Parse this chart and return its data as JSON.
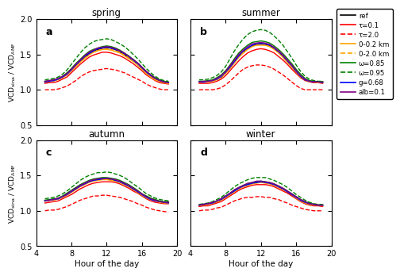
{
  "title_a": "spring",
  "title_b": "summer",
  "title_c": "autumn",
  "title_d": "winter",
  "label_a": "a",
  "label_b": "b",
  "label_c": "c",
  "label_d": "d",
  "xlabel": "Hour of the day",
  "ylabel_top": "VCD$_{sina}$ / VCD$_{AMF}$",
  "ylabel_bot": "VCD$_{sina}$ / VCD$_{AMF}$",
  "xlim": [
    4,
    20
  ],
  "ylim": [
    0.5,
    2.0
  ],
  "xticks": [
    4,
    8,
    12,
    16,
    20
  ],
  "yticks": [
    0.5,
    1.0,
    1.5,
    2.0
  ],
  "hours": [
    5.0,
    5.5,
    6.0,
    6.5,
    7.0,
    7.5,
    8.0,
    8.5,
    9.0,
    9.5,
    10.0,
    10.5,
    11.0,
    11.5,
    12.0,
    12.5,
    13.0,
    13.5,
    14.0,
    14.5,
    15.0,
    15.5,
    16.0,
    16.5,
    17.0,
    17.5,
    18.0,
    18.5,
    19.0
  ],
  "legend_labels": [
    "ref",
    "τ=0.1",
    "τ=2.0",
    "0-0.2 km",
    "0-2.0 km",
    "ω=0.85",
    "ω=0.95",
    "g=0.68",
    "alb=0.1"
  ],
  "legend_colors": [
    "black",
    "red",
    "red",
    "orange",
    "orange",
    "green",
    "green",
    "blue",
    "purple"
  ],
  "legend_styles": [
    "solid",
    "solid",
    "dashed",
    "solid",
    "dashed",
    "solid",
    "dashed",
    "solid",
    "solid"
  ],
  "spring": {
    "ref": [
      1.11,
      1.12,
      1.13,
      1.15,
      1.18,
      1.22,
      1.28,
      1.34,
      1.4,
      1.46,
      1.51,
      1.55,
      1.57,
      1.59,
      1.6,
      1.59,
      1.57,
      1.54,
      1.5,
      1.46,
      1.42,
      1.37,
      1.31,
      1.25,
      1.2,
      1.16,
      1.13,
      1.11,
      1.1
    ],
    "tau01": [
      1.09,
      1.1,
      1.1,
      1.12,
      1.15,
      1.18,
      1.24,
      1.3,
      1.36,
      1.41,
      1.46,
      1.49,
      1.51,
      1.53,
      1.53,
      1.52,
      1.5,
      1.48,
      1.45,
      1.41,
      1.37,
      1.32,
      1.27,
      1.21,
      1.17,
      1.13,
      1.1,
      1.09,
      1.08
    ],
    "tau20": [
      1.0,
      1.0,
      1.0,
      1.01,
      1.03,
      1.05,
      1.09,
      1.13,
      1.18,
      1.22,
      1.25,
      1.27,
      1.28,
      1.29,
      1.3,
      1.29,
      1.28,
      1.26,
      1.24,
      1.21,
      1.18,
      1.15,
      1.12,
      1.08,
      1.05,
      1.03,
      1.01,
      1.0,
      1.0
    ],
    "km02": [
      1.11,
      1.12,
      1.13,
      1.14,
      1.17,
      1.21,
      1.27,
      1.33,
      1.39,
      1.44,
      1.49,
      1.53,
      1.55,
      1.57,
      1.57,
      1.56,
      1.54,
      1.52,
      1.48,
      1.44,
      1.4,
      1.35,
      1.29,
      1.23,
      1.18,
      1.14,
      1.12,
      1.1,
      1.09
    ],
    "km20": [
      1.11,
      1.12,
      1.13,
      1.15,
      1.18,
      1.21,
      1.27,
      1.33,
      1.39,
      1.45,
      1.5,
      1.53,
      1.56,
      1.57,
      1.58,
      1.57,
      1.55,
      1.53,
      1.49,
      1.45,
      1.41,
      1.36,
      1.3,
      1.24,
      1.19,
      1.15,
      1.12,
      1.1,
      1.09
    ],
    "w085": [
      1.12,
      1.13,
      1.14,
      1.16,
      1.19,
      1.24,
      1.3,
      1.37,
      1.43,
      1.49,
      1.54,
      1.57,
      1.59,
      1.61,
      1.62,
      1.61,
      1.59,
      1.56,
      1.52,
      1.48,
      1.43,
      1.38,
      1.32,
      1.26,
      1.21,
      1.17,
      1.14,
      1.12,
      1.11
    ],
    "w095": [
      1.14,
      1.15,
      1.16,
      1.18,
      1.22,
      1.28,
      1.36,
      1.44,
      1.52,
      1.59,
      1.64,
      1.68,
      1.7,
      1.71,
      1.72,
      1.71,
      1.68,
      1.65,
      1.61,
      1.56,
      1.5,
      1.44,
      1.37,
      1.3,
      1.24,
      1.19,
      1.15,
      1.13,
      1.12
    ],
    "g068": [
      1.11,
      1.12,
      1.13,
      1.15,
      1.18,
      1.22,
      1.28,
      1.35,
      1.41,
      1.47,
      1.51,
      1.55,
      1.58,
      1.59,
      1.6,
      1.59,
      1.57,
      1.55,
      1.51,
      1.47,
      1.42,
      1.37,
      1.31,
      1.25,
      1.2,
      1.16,
      1.13,
      1.11,
      1.1
    ],
    "alb01": [
      1.12,
      1.13,
      1.14,
      1.16,
      1.19,
      1.23,
      1.29,
      1.36,
      1.42,
      1.48,
      1.53,
      1.56,
      1.59,
      1.6,
      1.61,
      1.6,
      1.58,
      1.55,
      1.52,
      1.47,
      1.43,
      1.38,
      1.32,
      1.26,
      1.21,
      1.16,
      1.13,
      1.11,
      1.1
    ]
  },
  "summer": {
    "ref": [
      1.11,
      1.11,
      1.12,
      1.13,
      1.15,
      1.18,
      1.24,
      1.31,
      1.39,
      1.47,
      1.53,
      1.58,
      1.62,
      1.64,
      1.65,
      1.64,
      1.62,
      1.58,
      1.53,
      1.47,
      1.4,
      1.33,
      1.26,
      1.19,
      1.14,
      1.12,
      1.11,
      1.11,
      1.11
    ],
    "tau01": [
      1.09,
      1.09,
      1.09,
      1.1,
      1.12,
      1.15,
      1.2,
      1.27,
      1.34,
      1.41,
      1.47,
      1.52,
      1.55,
      1.57,
      1.58,
      1.57,
      1.55,
      1.52,
      1.47,
      1.42,
      1.36,
      1.29,
      1.23,
      1.17,
      1.13,
      1.11,
      1.1,
      1.1,
      1.09
    ],
    "tau20": [
      1.0,
      1.0,
      1.0,
      1.0,
      1.01,
      1.03,
      1.07,
      1.12,
      1.18,
      1.24,
      1.29,
      1.32,
      1.34,
      1.35,
      1.35,
      1.34,
      1.32,
      1.29,
      1.25,
      1.21,
      1.16,
      1.11,
      1.06,
      1.02,
      1.0,
      1.0,
      1.0,
      1.0,
      1.0
    ],
    "km02": [
      1.11,
      1.11,
      1.11,
      1.12,
      1.14,
      1.18,
      1.23,
      1.3,
      1.38,
      1.46,
      1.52,
      1.57,
      1.61,
      1.63,
      1.63,
      1.63,
      1.61,
      1.57,
      1.52,
      1.46,
      1.39,
      1.32,
      1.25,
      1.18,
      1.14,
      1.11,
      1.11,
      1.1,
      1.1
    ],
    "km20": [
      1.11,
      1.11,
      1.12,
      1.13,
      1.15,
      1.18,
      1.24,
      1.31,
      1.39,
      1.47,
      1.53,
      1.58,
      1.61,
      1.63,
      1.64,
      1.63,
      1.61,
      1.58,
      1.53,
      1.47,
      1.4,
      1.33,
      1.26,
      1.19,
      1.14,
      1.12,
      1.11,
      1.1,
      1.1
    ],
    "w085": [
      1.12,
      1.12,
      1.13,
      1.14,
      1.17,
      1.21,
      1.27,
      1.35,
      1.44,
      1.52,
      1.58,
      1.63,
      1.67,
      1.68,
      1.69,
      1.68,
      1.66,
      1.62,
      1.57,
      1.51,
      1.44,
      1.37,
      1.29,
      1.22,
      1.16,
      1.13,
      1.12,
      1.11,
      1.11
    ],
    "w095": [
      1.14,
      1.14,
      1.15,
      1.17,
      1.2,
      1.25,
      1.33,
      1.44,
      1.55,
      1.64,
      1.72,
      1.78,
      1.82,
      1.84,
      1.85,
      1.84,
      1.81,
      1.76,
      1.7,
      1.63,
      1.54,
      1.45,
      1.35,
      1.26,
      1.19,
      1.15,
      1.13,
      1.12,
      1.12
    ],
    "g068": [
      1.11,
      1.11,
      1.12,
      1.13,
      1.15,
      1.19,
      1.25,
      1.32,
      1.4,
      1.48,
      1.55,
      1.59,
      1.63,
      1.65,
      1.65,
      1.65,
      1.63,
      1.59,
      1.54,
      1.48,
      1.41,
      1.34,
      1.26,
      1.19,
      1.14,
      1.12,
      1.11,
      1.11,
      1.1
    ],
    "alb01": [
      1.11,
      1.12,
      1.12,
      1.13,
      1.16,
      1.2,
      1.26,
      1.34,
      1.42,
      1.5,
      1.56,
      1.61,
      1.65,
      1.66,
      1.67,
      1.66,
      1.64,
      1.6,
      1.55,
      1.49,
      1.42,
      1.35,
      1.27,
      1.2,
      1.15,
      1.12,
      1.11,
      1.11,
      1.1
    ]
  },
  "autumn": {
    "ref": [
      1.14,
      1.15,
      1.16,
      1.17,
      1.2,
      1.23,
      1.27,
      1.31,
      1.35,
      1.38,
      1.41,
      1.43,
      1.44,
      1.45,
      1.45,
      1.44,
      1.43,
      1.41,
      1.38,
      1.35,
      1.31,
      1.27,
      1.23,
      1.2,
      1.17,
      1.15,
      1.13,
      1.12,
      1.12
    ],
    "tau01": [
      1.11,
      1.12,
      1.13,
      1.14,
      1.17,
      1.2,
      1.23,
      1.27,
      1.31,
      1.34,
      1.37,
      1.39,
      1.4,
      1.41,
      1.41,
      1.41,
      1.4,
      1.38,
      1.35,
      1.32,
      1.28,
      1.25,
      1.21,
      1.17,
      1.14,
      1.12,
      1.11,
      1.1,
      1.1
    ],
    "tau20": [
      1.0,
      1.01,
      1.01,
      1.02,
      1.04,
      1.06,
      1.09,
      1.12,
      1.15,
      1.17,
      1.19,
      1.21,
      1.21,
      1.22,
      1.22,
      1.21,
      1.2,
      1.19,
      1.17,
      1.15,
      1.13,
      1.1,
      1.08,
      1.05,
      1.03,
      1.01,
      1.0,
      0.99,
      0.98
    ],
    "km02": [
      1.14,
      1.15,
      1.15,
      1.17,
      1.19,
      1.22,
      1.26,
      1.3,
      1.34,
      1.37,
      1.4,
      1.42,
      1.43,
      1.44,
      1.44,
      1.43,
      1.42,
      1.4,
      1.37,
      1.34,
      1.3,
      1.26,
      1.22,
      1.18,
      1.16,
      1.14,
      1.12,
      1.11,
      1.11
    ],
    "km20": [
      1.14,
      1.15,
      1.16,
      1.17,
      1.2,
      1.23,
      1.27,
      1.31,
      1.35,
      1.38,
      1.41,
      1.43,
      1.44,
      1.45,
      1.45,
      1.44,
      1.43,
      1.41,
      1.38,
      1.35,
      1.31,
      1.27,
      1.23,
      1.19,
      1.16,
      1.14,
      1.13,
      1.12,
      1.12
    ],
    "w085": [
      1.15,
      1.16,
      1.17,
      1.18,
      1.21,
      1.25,
      1.29,
      1.33,
      1.37,
      1.4,
      1.43,
      1.45,
      1.46,
      1.47,
      1.47,
      1.46,
      1.45,
      1.43,
      1.4,
      1.37,
      1.33,
      1.29,
      1.24,
      1.21,
      1.18,
      1.16,
      1.14,
      1.13,
      1.13
    ],
    "w095": [
      1.17,
      1.18,
      1.19,
      1.21,
      1.24,
      1.28,
      1.33,
      1.38,
      1.43,
      1.47,
      1.5,
      1.52,
      1.54,
      1.54,
      1.55,
      1.54,
      1.52,
      1.5,
      1.47,
      1.43,
      1.38,
      1.34,
      1.29,
      1.24,
      1.21,
      1.18,
      1.16,
      1.15,
      1.14
    ],
    "g068": [
      1.14,
      1.15,
      1.16,
      1.17,
      1.2,
      1.23,
      1.27,
      1.31,
      1.35,
      1.38,
      1.41,
      1.43,
      1.44,
      1.45,
      1.46,
      1.45,
      1.43,
      1.41,
      1.38,
      1.35,
      1.31,
      1.27,
      1.23,
      1.19,
      1.16,
      1.14,
      1.13,
      1.12,
      1.11
    ],
    "alb01": [
      1.14,
      1.15,
      1.16,
      1.18,
      1.2,
      1.24,
      1.28,
      1.32,
      1.36,
      1.39,
      1.42,
      1.44,
      1.45,
      1.46,
      1.46,
      1.45,
      1.44,
      1.42,
      1.39,
      1.36,
      1.32,
      1.28,
      1.24,
      1.2,
      1.17,
      1.15,
      1.13,
      1.12,
      1.12
    ]
  },
  "winter": {
    "ref": [
      1.08,
      1.09,
      1.1,
      1.11,
      1.13,
      1.16,
      1.2,
      1.24,
      1.28,
      1.32,
      1.35,
      1.37,
      1.39,
      1.4,
      1.41,
      1.4,
      1.39,
      1.37,
      1.34,
      1.31,
      1.27,
      1.23,
      1.19,
      1.15,
      1.12,
      1.1,
      1.09,
      1.08,
      1.08
    ],
    "tau01": [
      1.06,
      1.07,
      1.07,
      1.09,
      1.11,
      1.13,
      1.17,
      1.21,
      1.25,
      1.29,
      1.32,
      1.34,
      1.36,
      1.37,
      1.37,
      1.37,
      1.36,
      1.34,
      1.31,
      1.28,
      1.25,
      1.21,
      1.17,
      1.13,
      1.1,
      1.08,
      1.07,
      1.07,
      1.06
    ],
    "tau20": [
      1.0,
      1.01,
      1.01,
      1.02,
      1.04,
      1.05,
      1.08,
      1.11,
      1.14,
      1.16,
      1.18,
      1.19,
      1.19,
      1.2,
      1.2,
      1.19,
      1.19,
      1.17,
      1.16,
      1.13,
      1.11,
      1.08,
      1.06,
      1.04,
      1.02,
      1.01,
      1.0,
      1.0,
      1.0
    ],
    "km02": [
      1.08,
      1.08,
      1.09,
      1.11,
      1.13,
      1.15,
      1.19,
      1.23,
      1.27,
      1.31,
      1.34,
      1.36,
      1.38,
      1.39,
      1.4,
      1.39,
      1.38,
      1.36,
      1.33,
      1.3,
      1.27,
      1.23,
      1.18,
      1.14,
      1.11,
      1.09,
      1.08,
      1.08,
      1.07
    ],
    "km20": [
      1.08,
      1.09,
      1.1,
      1.11,
      1.13,
      1.16,
      1.2,
      1.24,
      1.28,
      1.32,
      1.35,
      1.37,
      1.39,
      1.4,
      1.41,
      1.4,
      1.39,
      1.37,
      1.34,
      1.31,
      1.27,
      1.23,
      1.19,
      1.15,
      1.12,
      1.1,
      1.09,
      1.08,
      1.08
    ],
    "w085": [
      1.08,
      1.09,
      1.1,
      1.12,
      1.14,
      1.17,
      1.21,
      1.25,
      1.29,
      1.33,
      1.36,
      1.38,
      1.4,
      1.41,
      1.42,
      1.41,
      1.4,
      1.38,
      1.35,
      1.32,
      1.28,
      1.24,
      1.2,
      1.16,
      1.13,
      1.11,
      1.09,
      1.08,
      1.08
    ],
    "w095": [
      1.09,
      1.1,
      1.11,
      1.13,
      1.16,
      1.19,
      1.24,
      1.29,
      1.34,
      1.38,
      1.41,
      1.44,
      1.46,
      1.47,
      1.47,
      1.47,
      1.45,
      1.43,
      1.4,
      1.37,
      1.33,
      1.28,
      1.23,
      1.19,
      1.15,
      1.12,
      1.1,
      1.09,
      1.09
    ],
    "g068": [
      1.08,
      1.09,
      1.1,
      1.11,
      1.14,
      1.16,
      1.2,
      1.24,
      1.28,
      1.32,
      1.35,
      1.37,
      1.39,
      1.4,
      1.41,
      1.4,
      1.39,
      1.37,
      1.34,
      1.31,
      1.27,
      1.23,
      1.19,
      1.15,
      1.12,
      1.1,
      1.09,
      1.08,
      1.08
    ],
    "alb01": [
      1.08,
      1.09,
      1.1,
      1.12,
      1.14,
      1.17,
      1.21,
      1.25,
      1.3,
      1.33,
      1.36,
      1.39,
      1.4,
      1.42,
      1.42,
      1.41,
      1.4,
      1.38,
      1.35,
      1.32,
      1.28,
      1.24,
      1.2,
      1.16,
      1.13,
      1.1,
      1.09,
      1.08,
      1.08
    ]
  }
}
